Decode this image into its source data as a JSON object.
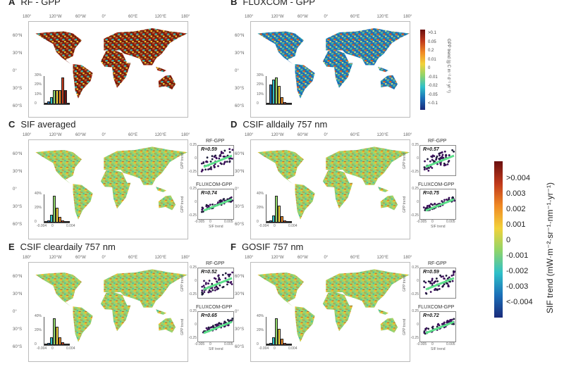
{
  "panels": [
    {
      "letter": "A",
      "title": "RF - GPP",
      "scheme": "warm",
      "hist": {
        "yticks": [
          "30%",
          "20%",
          "10%",
          "0"
        ],
        "values": [
          1,
          3,
          8,
          15,
          15,
          15,
          29,
          15,
          1
        ]
      },
      "scatter": null
    },
    {
      "letter": "B",
      "title": "FLUXCOM - GPP",
      "scheme": "cool",
      "hist": {
        "yticks": [
          "30%",
          "20%",
          "10%",
          "0"
        ],
        "values": [
          1,
          16,
          20,
          22,
          15,
          6,
          2,
          1,
          0
        ]
      },
      "scatter": null
    },
    {
      "letter": "C",
      "title": "SIF averaged",
      "scheme": "mixed",
      "hist": {
        "yticks": [
          "40%",
          "20%",
          "0"
        ],
        "xticks": [
          "-0.004",
          "0",
          "0.004"
        ],
        "values": [
          1,
          3,
          12,
          40,
          22,
          8,
          3,
          1,
          0
        ]
      },
      "scatter": [
        {
          "title": "RF-GPP",
          "r": "R=0.59"
        },
        {
          "title": "FLUXCOM-GPP",
          "r": "R=0.74"
        }
      ]
    },
    {
      "letter": "D",
      "title": "CSIF alldaily 757 nm",
      "scheme": "mixed",
      "hist": {
        "yticks": [
          "40%",
          "20%",
          "0"
        ],
        "xticks": [
          "-0.004",
          "0",
          "0.004"
        ],
        "values": [
          1,
          3,
          10,
          38,
          24,
          9,
          3,
          1,
          0
        ]
      },
      "scatter": [
        {
          "title": "RF-GPP",
          "r": "R=0.57"
        },
        {
          "title": "FLUXCOM-GPP",
          "r": "R=0.75"
        }
      ]
    },
    {
      "letter": "E",
      "title": "CSIF cleardaily 757 nm",
      "scheme": "mixed",
      "hist": {
        "yticks": [
          "40%",
          "20%",
          "0"
        ],
        "xticks": [
          "-0.004",
          "0",
          "0.004"
        ],
        "values": [
          1,
          3,
          10,
          36,
          25,
          10,
          4,
          1,
          0
        ]
      },
      "scatter": [
        {
          "title": "RF-GPP",
          "r": "R=0.52"
        },
        {
          "title": "FLUXCOM-GPP",
          "r": "R=0.65"
        }
      ]
    },
    {
      "letter": "F",
      "title": "GOSIF 757 nm",
      "scheme": "mixed",
      "hist": {
        "yticks": [
          "40%",
          "20%",
          "0"
        ],
        "xticks": [
          "-0.004",
          "0",
          "0.004"
        ],
        "values": [
          1,
          3,
          11,
          38,
          23,
          9,
          3,
          1,
          0
        ]
      },
      "scatter": [
        {
          "title": "RF-GPP",
          "r": "R=0.59"
        },
        {
          "title": "FLUXCOM-GPP",
          "r": "R=0.72"
        }
      ]
    }
  ],
  "lon_ticks": [
    "180°",
    "120°W",
    "60°W",
    "0°",
    "60°E",
    "120°E",
    "180°"
  ],
  "lat_ticks": [
    "60°N",
    "30°N",
    "0°",
    "30°S",
    "60°S"
  ],
  "scatter_axes": {
    "ylabel": "GPP trend",
    "xlabel": "SIF trend",
    "yticks": [
      "0.25",
      "0",
      "-0.25"
    ],
    "xticks": [
      "-0.005",
      "0",
      "0.005"
    ]
  },
  "gpp_colorbar": {
    "label": "GPP trend (g C m⁻² d⁻¹ yr⁻¹)",
    "ticks": [
      ">0.1",
      "0.05",
      "0.2",
      "0.01",
      "0",
      "-0.01",
      "-0.02",
      "-0.05",
      "<-0.1"
    ]
  },
  "sif_colorbar": {
    "label": "SIF trend (mW·m⁻²·sr⁻¹·nm⁻¹·yr⁻¹)",
    "ticks": [
      ">0.004",
      "0.003",
      "0.002",
      "0.001",
      "0",
      "-0.001",
      "-0.002",
      "-0.003",
      "<-0.004"
    ]
  },
  "colors": {
    "warm": [
      "#7a1a0a",
      "#c0391b",
      "#e5771f",
      "#f2c12e",
      "#9fd36b",
      "#2fb3b0"
    ],
    "cool": [
      "#1b6fb8",
      "#2fb3b0",
      "#6ccf9a",
      "#b8e07a",
      "#f2c12e",
      "#d85a1f"
    ],
    "mixed": [
      "#9fd36b",
      "#f2c12e",
      "#e5771f",
      "#4fc3a1",
      "#c0391b",
      "#7fcf7a"
    ]
  }
}
